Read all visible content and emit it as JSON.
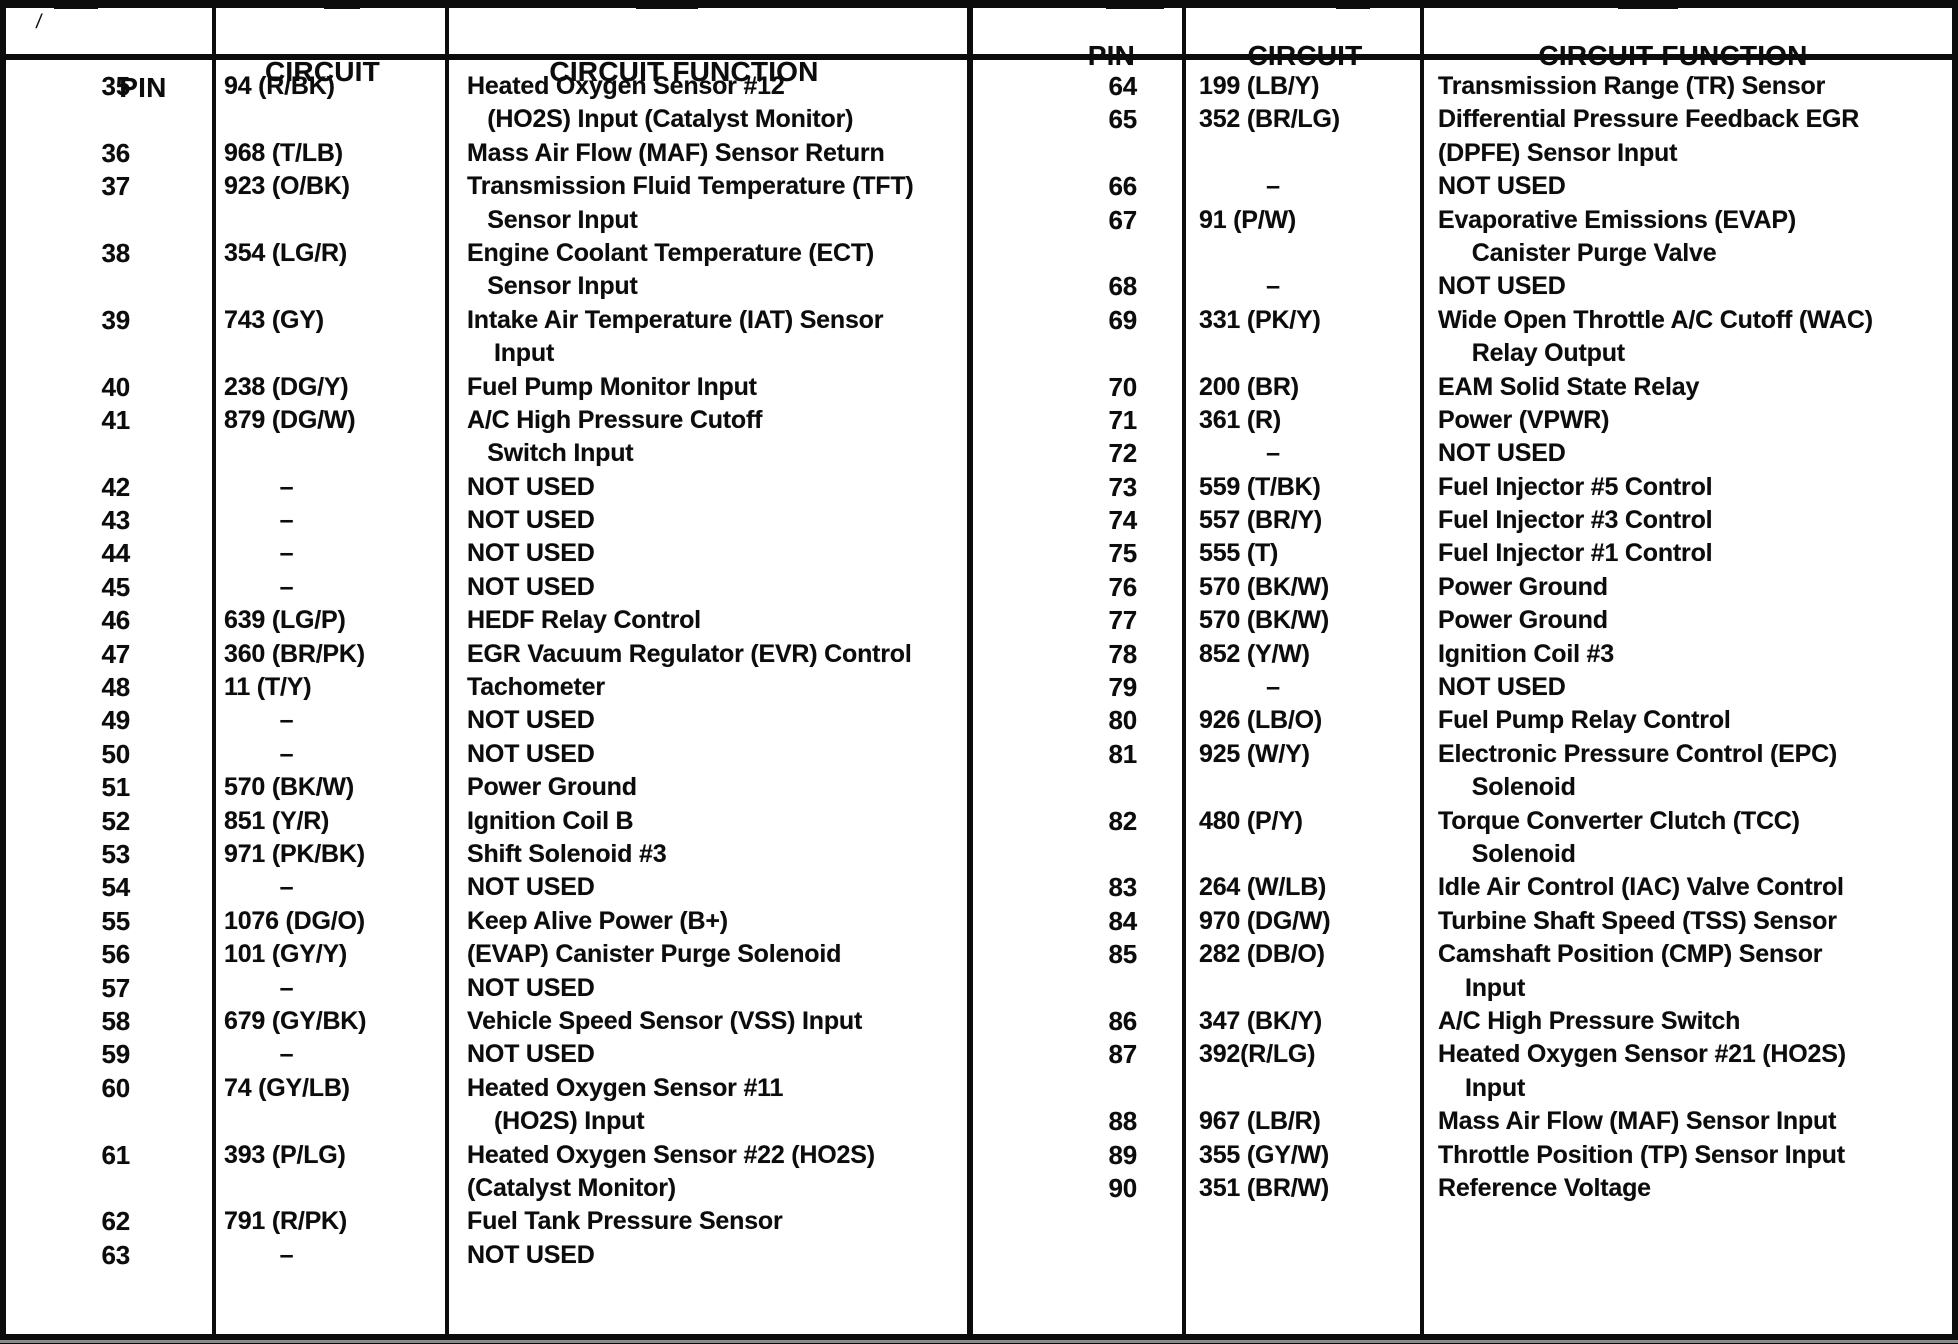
{
  "artifact_mark": "/",
  "headers": {
    "pin": "PIN",
    "circuit": "CIRCUIT",
    "function": "CIRCUIT FUNCTION"
  },
  "table": {
    "left_rows": [
      {
        "pin": "35",
        "circuit": "94 (R/BK)",
        "function": [
          "Heated Oxygen Sensor #12",
          "   (HO2S) Input (Catalyst Monitor)"
        ]
      },
      {
        "pin": "36",
        "circuit": "968 (T/LB)",
        "function": [
          "Mass Air Flow (MAF) Sensor Return"
        ]
      },
      {
        "pin": "37",
        "circuit": "923 (O/BK)",
        "function": [
          "Transmission Fluid Temperature (TFT)",
          "   Sensor Input"
        ]
      },
      {
        "pin": "38",
        "circuit": "354 (LG/R)",
        "function": [
          "Engine Coolant Temperature (ECT)",
          "   Sensor Input"
        ]
      },
      {
        "pin": "39",
        "circuit": "743 (GY)",
        "function": [
          "Intake Air Temperature (IAT) Sensor",
          "    Input"
        ]
      },
      {
        "pin": "40",
        "circuit": "238 (DG/Y)",
        "function": [
          "Fuel Pump Monitor Input"
        ]
      },
      {
        "pin": "41",
        "circuit": "879 (DG/W)",
        "function": [
          "A/C High Pressure Cutoff",
          "   Switch Input"
        ]
      },
      {
        "pin": "42",
        "circuit": "–",
        "function": [
          "NOT USED"
        ]
      },
      {
        "pin": "43",
        "circuit": "–",
        "function": [
          "NOT USED"
        ]
      },
      {
        "pin": "44",
        "circuit": "–",
        "function": [
          "NOT USED"
        ]
      },
      {
        "pin": "45",
        "circuit": "–",
        "function": [
          "NOT USED"
        ]
      },
      {
        "pin": "46",
        "circuit": "639 (LG/P)",
        "function": [
          "HEDF Relay Control"
        ]
      },
      {
        "pin": "47",
        "circuit": "360 (BR/PK)",
        "function": [
          "EGR Vacuum Regulator (EVR) Control"
        ]
      },
      {
        "pin": "48",
        "circuit": "11 (T/Y)",
        "function": [
          "Tachometer"
        ]
      },
      {
        "pin": "49",
        "circuit": "–",
        "function": [
          "NOT USED"
        ]
      },
      {
        "pin": "50",
        "circuit": "–",
        "function": [
          "NOT USED"
        ]
      },
      {
        "pin": "51",
        "circuit": "570 (BK/W)",
        "function": [
          "Power Ground"
        ]
      },
      {
        "pin": "52",
        "circuit": "851 (Y/R)",
        "function": [
          "Ignition Coil B"
        ]
      },
      {
        "pin": "53",
        "circuit": "971 (PK/BK)",
        "function": [
          "Shift Solenoid #3"
        ]
      },
      {
        "pin": "54",
        "circuit": "–",
        "function": [
          "NOT USED"
        ]
      },
      {
        "pin": "55",
        "circuit": "1076 (DG/O)",
        "function": [
          "Keep Alive Power (B+)"
        ]
      },
      {
        "pin": "56",
        "circuit": "101 (GY/Y)",
        "function": [
          "(EVAP) Canister Purge Solenoid"
        ]
      },
      {
        "pin": "57",
        "circuit": "–",
        "function": [
          "NOT USED"
        ]
      },
      {
        "pin": "58",
        "circuit": "679 (GY/BK)",
        "function": [
          "Vehicle Speed Sensor (VSS) Input"
        ]
      },
      {
        "pin": "59",
        "circuit": "–",
        "function": [
          "NOT USED"
        ]
      },
      {
        "pin": "60",
        "circuit": "74 (GY/LB)",
        "function": [
          "Heated Oxygen Sensor #11",
          "    (HO2S) Input"
        ]
      },
      {
        "pin": "61",
        "circuit": "393 (P/LG)",
        "function": [
          "Heated Oxygen Sensor #22 (HO2S)",
          "(Catalyst Monitor)"
        ]
      },
      {
        "pin": "62",
        "circuit": "791 (R/PK)",
        "function": [
          "Fuel Tank Pressure Sensor"
        ]
      },
      {
        "pin": "63",
        "circuit": "–",
        "function": [
          "NOT USED"
        ]
      }
    ],
    "right_rows": [
      {
        "pin": "64",
        "circuit": "199 (LB/Y)",
        "function": [
          "Transmission Range (TR) Sensor"
        ]
      },
      {
        "pin": "65",
        "circuit": "352 (BR/LG)",
        "function": [
          "Differential Pressure Feedback EGR",
          "(DPFE) Sensor Input"
        ]
      },
      {
        "pin": "66",
        "circuit": "–",
        "function": [
          "NOT USED"
        ]
      },
      {
        "pin": "67",
        "circuit": "91 (P/W)",
        "function": [
          "Evaporative Emissions (EVAP)",
          "     Canister Purge Valve"
        ]
      },
      {
        "pin": "68",
        "circuit": "–",
        "function": [
          "NOT USED"
        ]
      },
      {
        "pin": "69",
        "circuit": "331 (PK/Y)",
        "function": [
          "Wide Open Throttle A/C Cutoff (WAC)",
          "     Relay Output"
        ]
      },
      {
        "pin": "70",
        "circuit": "200 (BR)",
        "function": [
          "EAM Solid State Relay"
        ]
      },
      {
        "pin": "71",
        "circuit": "361 (R)",
        "function": [
          "Power (VPWR)"
        ]
      },
      {
        "pin": "72",
        "circuit": "–",
        "function": [
          "NOT USED"
        ]
      },
      {
        "pin": "73",
        "circuit": "559 (T/BK)",
        "function": [
          "Fuel Injector #5 Control"
        ]
      },
      {
        "pin": "74",
        "circuit": "557 (BR/Y)",
        "function": [
          "Fuel Injector #3 Control"
        ]
      },
      {
        "pin": "75",
        "circuit": "555 (T)",
        "function": [
          "Fuel Injector #1 Control"
        ]
      },
      {
        "pin": "76",
        "circuit": "570 (BK/W)",
        "function": [
          "Power Ground"
        ]
      },
      {
        "pin": "77",
        "circuit": "570 (BK/W)",
        "function": [
          "Power Ground"
        ]
      },
      {
        "pin": "78",
        "circuit": "852 (Y/W)",
        "function": [
          "Ignition Coil #3"
        ]
      },
      {
        "pin": "79",
        "circuit": "–",
        "function": [
          "NOT USED"
        ]
      },
      {
        "pin": "80",
        "circuit": "926 (LB/O)",
        "function": [
          "Fuel Pump Relay Control"
        ]
      },
      {
        "pin": "81",
        "circuit": "925 (W/Y)",
        "function": [
          "Electronic Pressure Control (EPC)",
          "     Solenoid"
        ]
      },
      {
        "pin": "82",
        "circuit": "480 (P/Y)",
        "function": [
          "Torque Converter Clutch (TCC)",
          "     Solenoid"
        ]
      },
      {
        "pin": "83",
        "circuit": "264 (W/LB)",
        "function": [
          "Idle Air Control (IAC) Valve Control"
        ]
      },
      {
        "pin": "84",
        "circuit": "970 (DG/W)",
        "function": [
          "Turbine Shaft Speed (TSS) Sensor"
        ]
      },
      {
        "pin": "85",
        "circuit": "282 (DB/O)",
        "function": [
          "Camshaft Position (CMP) Sensor",
          "    Input"
        ]
      },
      {
        "pin": "86",
        "circuit": "347 (BK/Y)",
        "function": [
          "A/C High Pressure Switch"
        ]
      },
      {
        "pin": "87",
        "circuit": "392(R/LG)",
        "function": [
          "Heated Oxygen Sensor #21 (HO2S)",
          "    Input"
        ]
      },
      {
        "pin": "88",
        "circuit": "967 (LB/R)",
        "function": [
          "Mass Air Flow (MAF) Sensor Input"
        ]
      },
      {
        "pin": "89",
        "circuit": "355 (GY/W)",
        "function": [
          "Throttle Position (TP) Sensor Input"
        ]
      },
      {
        "pin": "90",
        "circuit": "351 (BR/W)",
        "function": [
          "Reference Voltage"
        ]
      }
    ]
  }
}
